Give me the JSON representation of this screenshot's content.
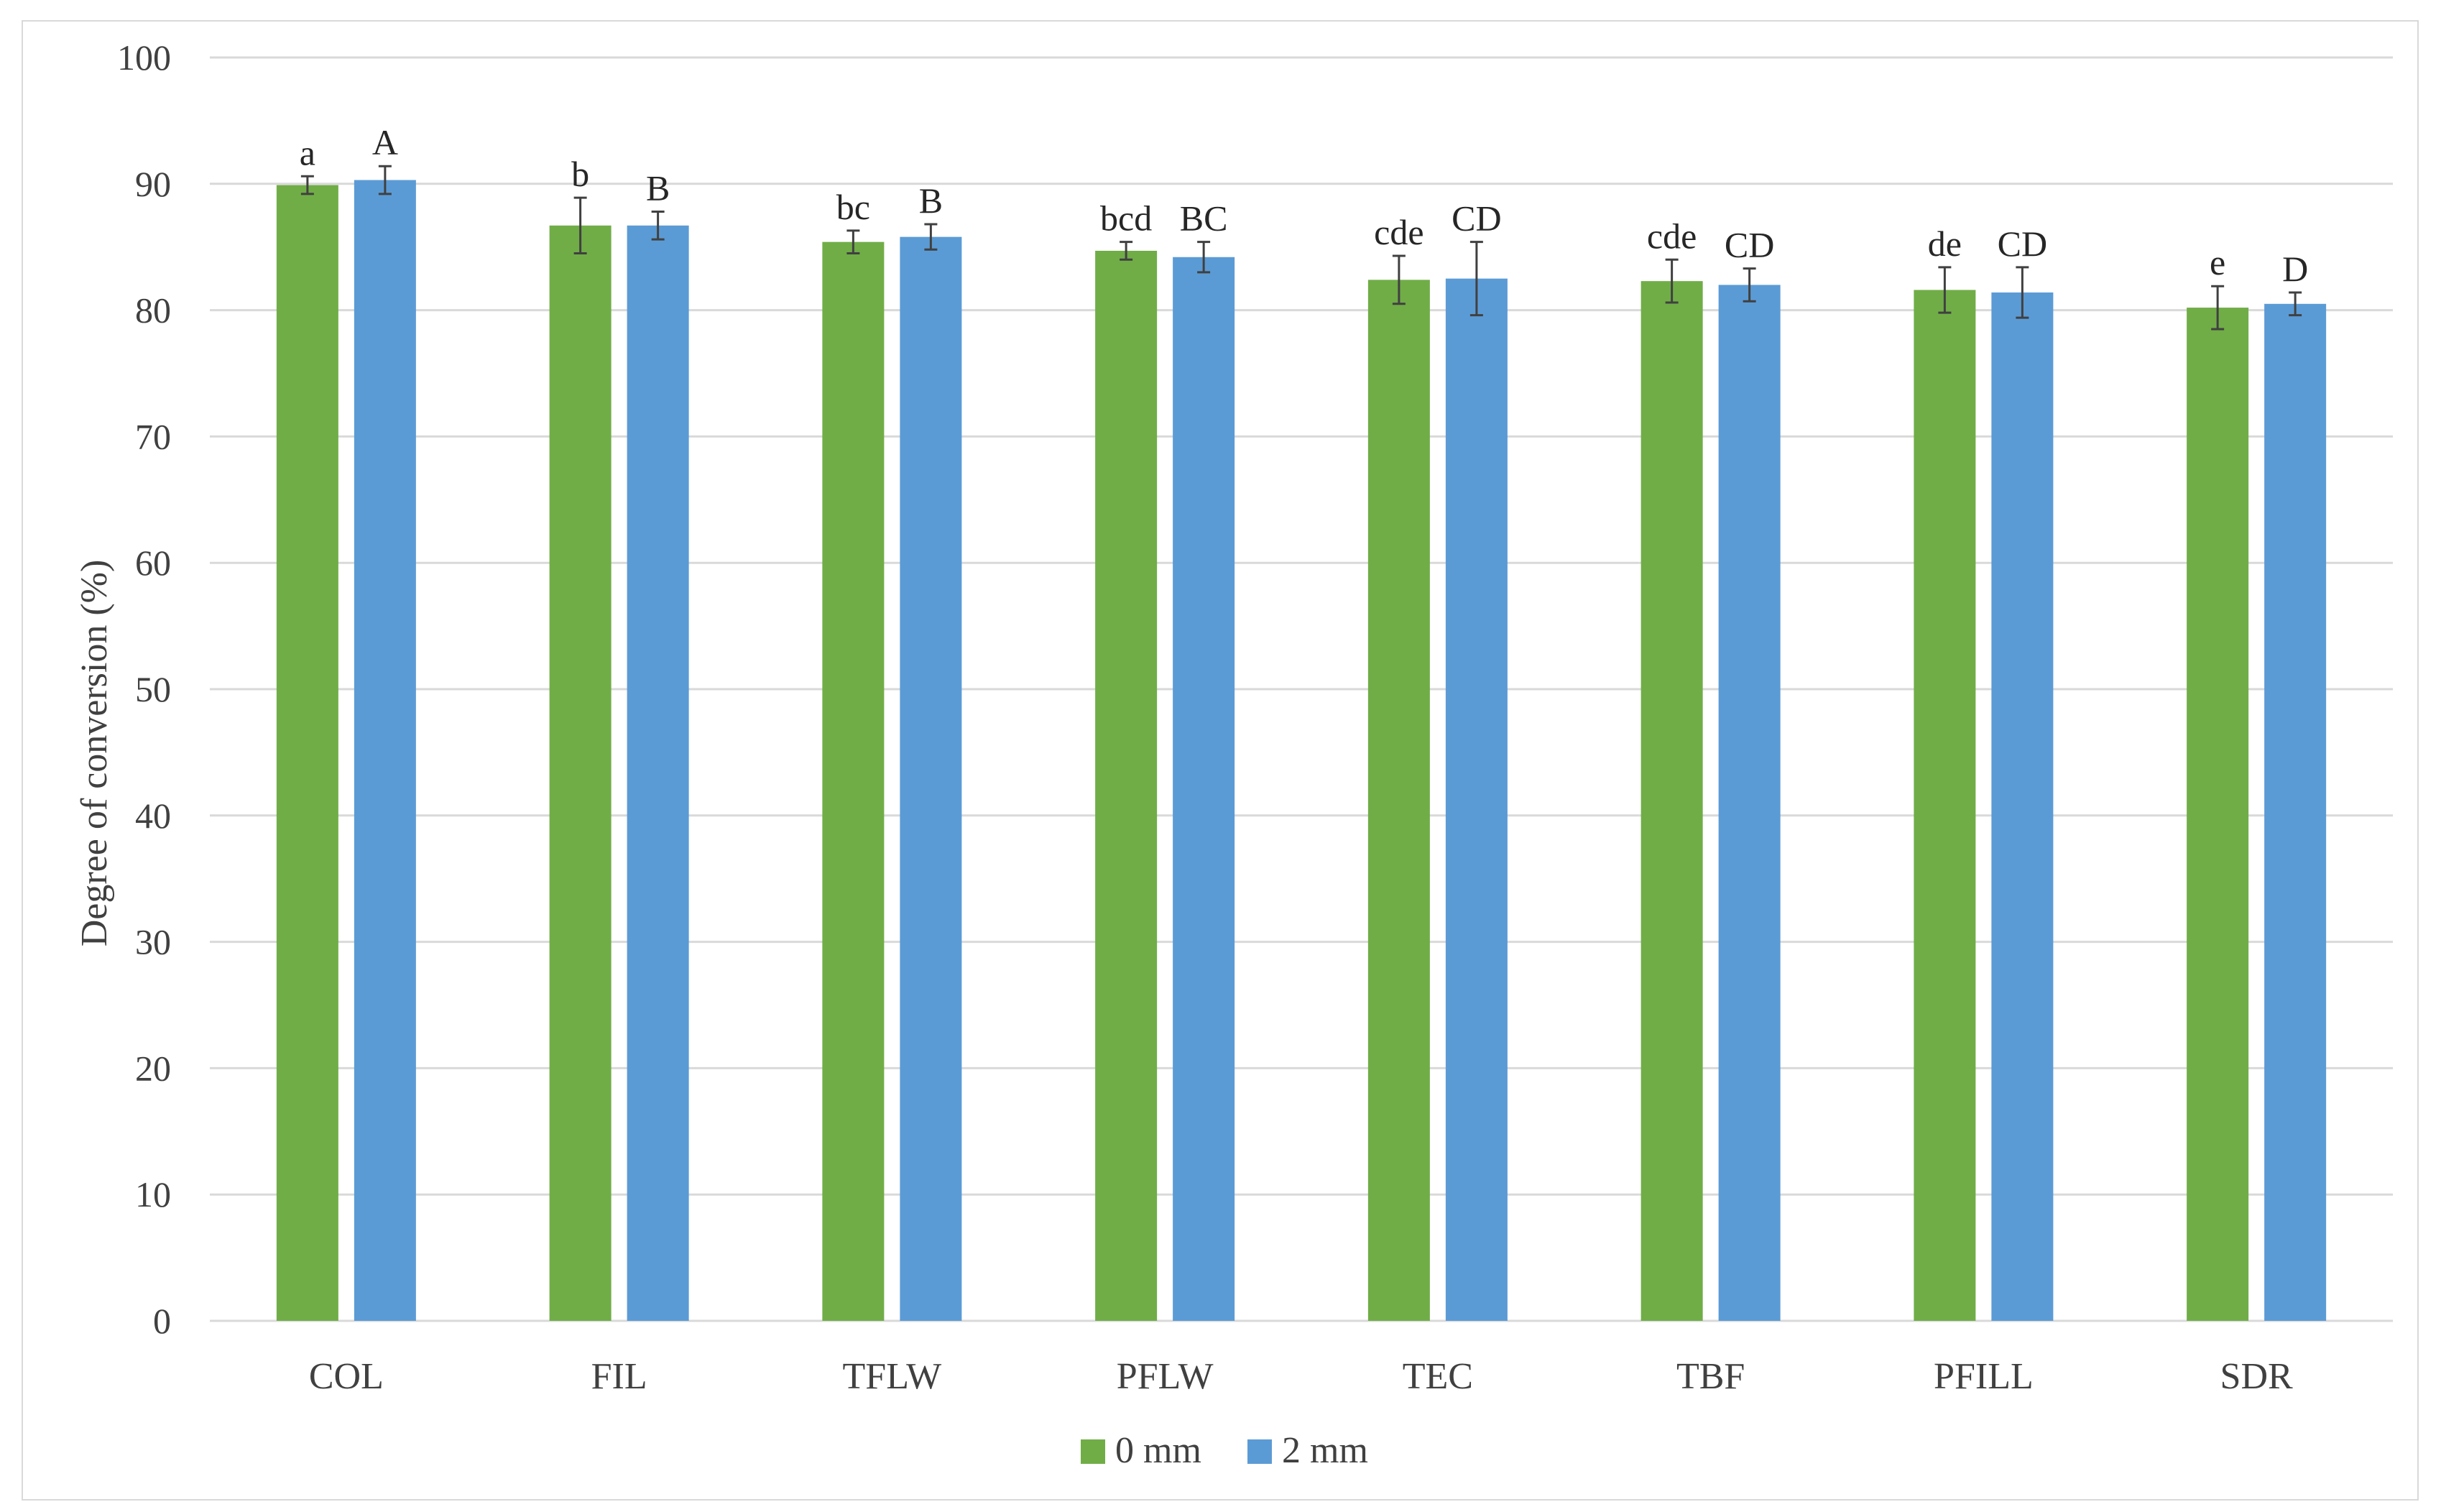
{
  "chart_data": {
    "type": "bar",
    "title": "",
    "xlabel": "",
    "ylabel": "Degree of conversion (%)",
    "ylim": [
      0,
      100
    ],
    "yticks": [
      0,
      10,
      20,
      30,
      40,
      50,
      60,
      70,
      80,
      90,
      100
    ],
    "grid": true,
    "legend_position": "bottom-center",
    "categories": [
      "COL",
      "FIL",
      "TFLW",
      "PFLW",
      "TEC",
      "TBF",
      "PFILL",
      "SDR"
    ],
    "series": [
      {
        "name": "0 mm",
        "color": "#70ad47",
        "values": [
          89.9,
          86.7,
          85.4,
          84.7,
          82.4,
          82.3,
          81.6,
          80.2
        ],
        "errors": [
          0.7,
          2.2,
          0.9,
          0.7,
          1.9,
          1.7,
          1.8,
          1.7
        ],
        "labels": [
          "a",
          "b",
          "bc",
          "bcd",
          "cde",
          "cde",
          "de",
          "e"
        ]
      },
      {
        "name": "2 mm",
        "color": "#5b9bd5",
        "values": [
          90.3,
          86.7,
          85.8,
          84.2,
          82.5,
          82.0,
          81.4,
          80.5
        ],
        "errors": [
          1.1,
          1.1,
          1.0,
          1.2,
          2.9,
          1.3,
          2.0,
          0.9
        ],
        "labels": [
          "A",
          "B",
          "B",
          "BC",
          "CD",
          "CD",
          "CD",
          "D"
        ]
      }
    ]
  }
}
